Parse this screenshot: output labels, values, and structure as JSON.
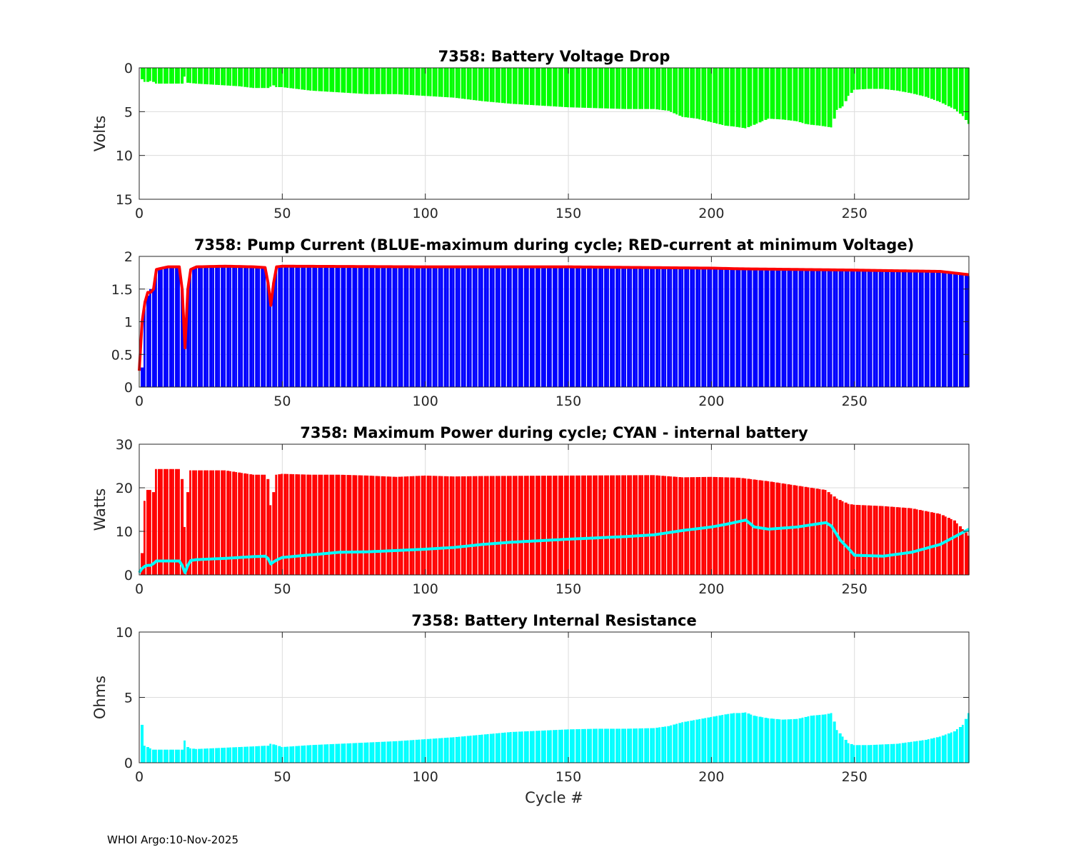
{
  "footer": "WHOI Argo:10-Nov-2025",
  "colors": {
    "voltage_bars": "#00ff00",
    "current_bars": "#0000ff",
    "current_line": "#ff0000",
    "power_bars": "#ff0000",
    "power_line": "#00ffff",
    "resistance_bars": "#00ffff",
    "grid": "#dcdcdc",
    "axis": "#262626"
  },
  "chart_data": [
    {
      "id": "voltage",
      "type": "bar",
      "title": "7358: Battery Voltage Drop",
      "xlabel": "",
      "ylabel": "Volts",
      "xlim": [
        0,
        290
      ],
      "ylim": [
        0,
        15
      ],
      "y_reversed": true,
      "xticks": [
        0,
        50,
        100,
        150,
        200,
        250
      ],
      "yticks": [
        0,
        5,
        10,
        15
      ],
      "grid": true,
      "series": [
        {
          "type": "bar",
          "color": "#00ff00",
          "x": [
            1,
            2,
            3,
            4,
            5,
            6,
            10,
            15,
            16,
            17,
            20,
            25,
            30,
            35,
            40,
            45,
            47,
            48,
            50,
            55,
            60,
            70,
            80,
            90,
            100,
            110,
            120,
            130,
            140,
            150,
            160,
            170,
            180,
            185,
            190,
            195,
            200,
            205,
            208,
            210,
            212,
            215,
            220,
            225,
            230,
            233,
            235,
            238,
            240,
            242,
            244,
            246,
            248,
            250,
            255,
            260,
            265,
            270,
            275,
            280,
            285,
            288,
            290
          ],
          "values": [
            1.3,
            1.6,
            1.6,
            1.5,
            1.6,
            1.8,
            1.8,
            1.8,
            1.0,
            1.7,
            1.8,
            1.9,
            2.0,
            2.1,
            2.3,
            2.3,
            2.0,
            2.2,
            2.2,
            2.4,
            2.6,
            2.8,
            3.0,
            3.0,
            3.2,
            3.4,
            3.8,
            4.1,
            4.3,
            4.5,
            4.6,
            4.7,
            4.7,
            4.9,
            5.6,
            5.8,
            6.2,
            6.6,
            6.7,
            6.8,
            6.9,
            6.5,
            5.8,
            5.9,
            6.1,
            6.4,
            6.5,
            6.6,
            6.7,
            6.8,
            4.8,
            4.4,
            3.2,
            2.5,
            2.4,
            2.4,
            2.6,
            2.9,
            3.3,
            3.9,
            4.7,
            5.5,
            6.4
          ]
        }
      ]
    },
    {
      "id": "current",
      "type": "bar",
      "title": "7358: Pump Current (BLUE-maximum during cycle; RED-current at minimum Voltage)",
      "xlabel": "",
      "ylabel": "",
      "xlim": [
        0,
        290
      ],
      "ylim": [
        0,
        2
      ],
      "xticks": [
        0,
        50,
        100,
        150,
        200,
        250
      ],
      "yticks": [
        0,
        0.5,
        1,
        1.5,
        2
      ],
      "grid": true,
      "series": [
        {
          "type": "bar",
          "color": "#0000ff",
          "x": [
            1,
            2,
            3,
            4,
            5,
            6,
            10,
            14,
            15,
            16,
            17,
            18,
            20,
            30,
            40,
            44,
            45,
            46,
            47,
            48,
            50,
            100,
            150,
            200,
            210,
            250,
            280,
            290
          ],
          "values": [
            0.3,
            1.2,
            1.4,
            1.5,
            1.5,
            1.8,
            1.84,
            1.84,
            1.5,
            0.6,
            1.5,
            1.8,
            1.84,
            1.85,
            1.84,
            1.83,
            1.6,
            1.25,
            1.6,
            1.84,
            1.85,
            1.84,
            1.84,
            1.82,
            1.8,
            1.78,
            1.76,
            1.7
          ]
        },
        {
          "type": "line",
          "color": "#ff0000",
          "x": [
            0,
            1,
            2,
            3,
            4,
            5,
            6,
            10,
            14,
            15,
            16,
            17,
            18,
            20,
            30,
            40,
            44,
            45,
            46,
            47,
            48,
            50,
            100,
            150,
            200,
            210,
            250,
            280,
            290
          ],
          "values": [
            0.25,
            1.0,
            1.3,
            1.45,
            1.45,
            1.5,
            1.8,
            1.84,
            1.84,
            1.5,
            0.6,
            1.5,
            1.8,
            1.84,
            1.85,
            1.84,
            1.83,
            1.6,
            1.25,
            1.6,
            1.84,
            1.85,
            1.84,
            1.84,
            1.82,
            1.81,
            1.79,
            1.77,
            1.72
          ]
        }
      ]
    },
    {
      "id": "power",
      "type": "bar",
      "title": "7358: Maximum Power during cycle; CYAN - internal battery",
      "xlabel": "",
      "ylabel": "Watts",
      "xlim": [
        0,
        290
      ],
      "ylim": [
        0,
        30
      ],
      "xticks": [
        0,
        50,
        100,
        150,
        200,
        250
      ],
      "yticks": [
        0,
        10,
        20,
        30
      ],
      "grid": true,
      "series": [
        {
          "type": "bar",
          "color": "#ff0000",
          "x": [
            1,
            2,
            3,
            4,
            5,
            6,
            10,
            14,
            15,
            16,
            17,
            18,
            20,
            25,
            30,
            35,
            40,
            44,
            45,
            46,
            47,
            48,
            50,
            60,
            70,
            80,
            90,
            100,
            110,
            120,
            150,
            180,
            190,
            200,
            210,
            220,
            230,
            235,
            240,
            244,
            248,
            250,
            260,
            270,
            280,
            285,
            288,
            290
          ],
          "values": [
            5,
            17,
            19.5,
            19.5,
            19,
            24.3,
            24.3,
            24.3,
            22,
            11,
            19,
            24,
            24,
            24,
            24,
            23.5,
            23,
            23,
            22,
            16,
            19,
            23,
            23.2,
            23,
            23,
            22.8,
            22.5,
            22.8,
            22.6,
            22.7,
            22.8,
            22.9,
            22.4,
            22.5,
            22.3,
            21.5,
            20.5,
            20,
            19.5,
            17.5,
            16.3,
            16.1,
            15.8,
            15.3,
            14,
            12.5,
            10.5,
            9
          ]
        },
        {
          "type": "line",
          "color": "#00ffff",
          "x": [
            0,
            1,
            2,
            3,
            4,
            5,
            6,
            10,
            14,
            15,
            16,
            17,
            18,
            20,
            30,
            40,
            44,
            45,
            46,
            47,
            48,
            50,
            60,
            70,
            80,
            90,
            100,
            110,
            120,
            130,
            150,
            170,
            180,
            190,
            200,
            205,
            210,
            212,
            215,
            220,
            230,
            235,
            240,
            242,
            245,
            248,
            250,
            260,
            270,
            280,
            290
          ],
          "values": [
            0.5,
            1.5,
            2,
            2.2,
            2.2,
            2.6,
            3.2,
            3.2,
            3.2,
            2.2,
            0.5,
            2.2,
            3.3,
            3.5,
            3.8,
            4.2,
            4.3,
            3.8,
            2.5,
            3,
            3.4,
            4,
            4.6,
            5.2,
            5.3,
            5.6,
            5.9,
            6.3,
            7,
            7.5,
            8.2,
            8.8,
            9.2,
            10.2,
            11,
            11.6,
            12.3,
            12.6,
            11,
            10.5,
            11,
            11.5,
            12,
            11.2,
            8,
            6,
            4.5,
            4.3,
            5.2,
            7,
            10.5
          ]
        }
      ]
    },
    {
      "id": "resistance",
      "type": "bar",
      "title": "7358: Battery Internal Resistance",
      "xlabel": "Cycle #",
      "ylabel": "Ohms",
      "xlim": [
        0,
        290
      ],
      "ylim": [
        0,
        10
      ],
      "xticks": [
        0,
        50,
        100,
        150,
        200,
        250
      ],
      "yticks": [
        0,
        5,
        10
      ],
      "grid": true,
      "series": [
        {
          "type": "bar",
          "color": "#00ffff",
          "x": [
            1,
            2,
            3,
            5,
            10,
            15,
            16,
            17,
            18,
            20,
            30,
            40,
            44,
            45,
            46,
            47,
            48,
            50,
            60,
            70,
            80,
            90,
            100,
            110,
            120,
            130,
            140,
            150,
            160,
            170,
            180,
            185,
            190,
            195,
            200,
            205,
            208,
            210,
            212,
            215,
            220,
            225,
            230,
            235,
            240,
            242,
            244,
            246,
            248,
            250,
            255,
            260,
            265,
            270,
            275,
            280,
            285,
            288,
            290
          ],
          "values": [
            2.9,
            1.3,
            1.2,
            1.0,
            1.0,
            1.0,
            1.7,
            1.2,
            1.1,
            1.05,
            1.15,
            1.25,
            1.3,
            1.3,
            1.45,
            1.4,
            1.35,
            1.2,
            1.35,
            1.45,
            1.55,
            1.65,
            1.8,
            1.95,
            2.15,
            2.35,
            2.45,
            2.55,
            2.6,
            2.6,
            2.65,
            2.8,
            3.1,
            3.3,
            3.5,
            3.7,
            3.8,
            3.8,
            3.85,
            3.6,
            3.4,
            3.3,
            3.35,
            3.6,
            3.7,
            3.8,
            2.5,
            2.0,
            1.5,
            1.35,
            1.35,
            1.4,
            1.45,
            1.6,
            1.75,
            2.0,
            2.4,
            2.9,
            3.8
          ]
        }
      ]
    }
  ]
}
